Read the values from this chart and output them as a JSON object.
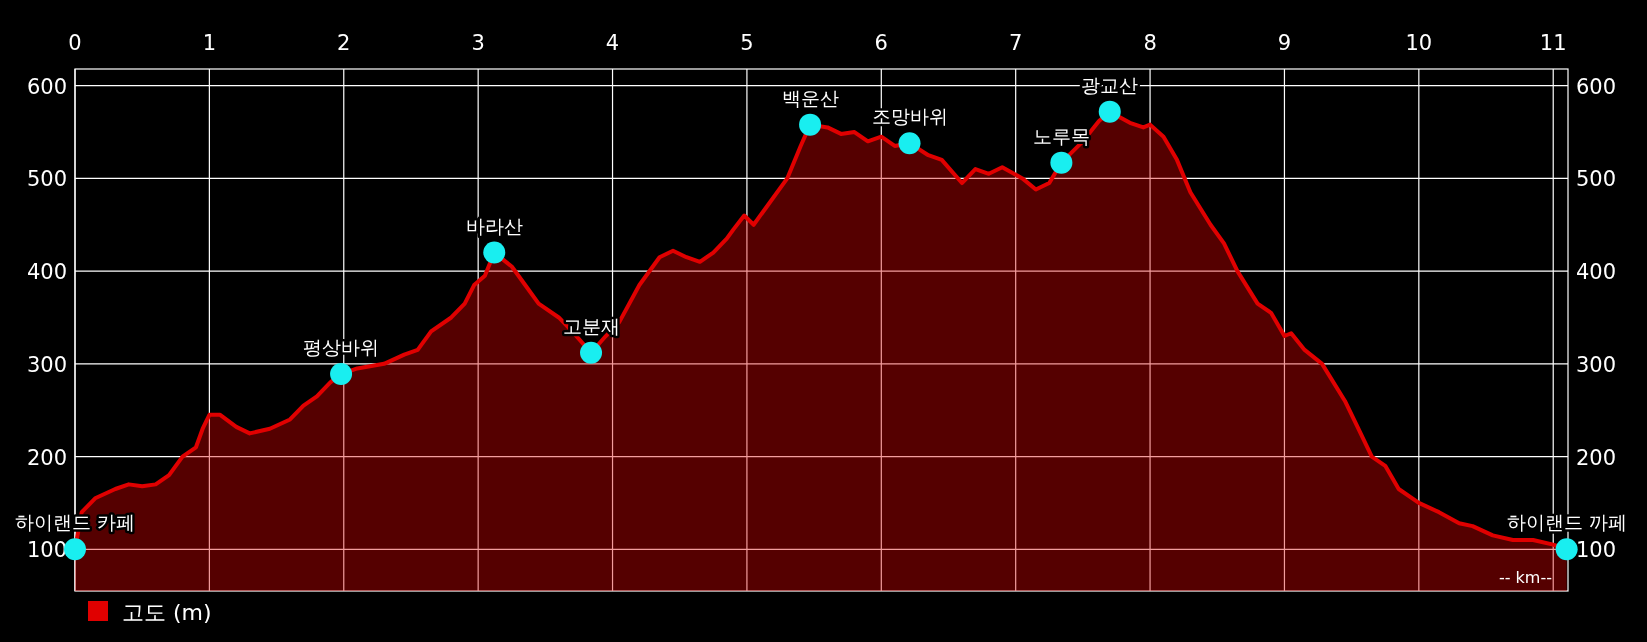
{
  "chart_data": {
    "type": "area",
    "xlabel": "-- km--",
    "xlim": [
      0,
      11.11
    ],
    "xticks": [
      0,
      1,
      2,
      3,
      4,
      5,
      6,
      7,
      8,
      9,
      10,
      11
    ],
    "ylim": [
      55,
      618
    ],
    "yticks": [
      100,
      200,
      300,
      400,
      500,
      600
    ],
    "y2lim": [
      55,
      618
    ],
    "y2ticks": [
      100,
      200,
      300,
      400,
      500,
      600
    ],
    "grid": true,
    "legend": "bottom left",
    "series": [
      {
        "name": "고도 (m)",
        "color": "#e00000",
        "marker": "none",
        "x": [
          0,
          0.05,
          0.15,
          0.3,
          0.4,
          0.5,
          0.6,
          0.7,
          0.8,
          0.9,
          0.95,
          1.0,
          1.08,
          1.2,
          1.3,
          1.45,
          1.6,
          1.7,
          1.8,
          1.9,
          1.98,
          2.1,
          2.3,
          2.45,
          2.55,
          2.65,
          2.8,
          2.9,
          2.97,
          3.05,
          3.12,
          3.25,
          3.35,
          3.45,
          3.6,
          3.7,
          3.84,
          3.95,
          4.05,
          4.2,
          4.35,
          4.45,
          4.55,
          4.65,
          4.75,
          4.85,
          4.9,
          4.98,
          5.05,
          5.15,
          5.3,
          5.4,
          5.47,
          5.6,
          5.7,
          5.8,
          5.9,
          6.0,
          6.1,
          6.21,
          6.35,
          6.45,
          6.6,
          6.7,
          6.8,
          6.9,
          7.05,
          7.15,
          7.25,
          7.34,
          7.5,
          7.62,
          7.7,
          7.85,
          7.95,
          8.0,
          8.1,
          8.2,
          8.3,
          8.45,
          8.55,
          8.65,
          8.8,
          8.9,
          9.0,
          9.05,
          9.15,
          9.28,
          9.45,
          9.55,
          9.65,
          9.75,
          9.85,
          10.0,
          10.15,
          10.3,
          10.4,
          10.55,
          10.7,
          10.85,
          11.0,
          11.1
        ],
        "values": [
          100,
          140,
          155,
          165,
          170,
          168,
          170,
          180,
          200,
          210,
          230,
          245,
          245,
          232,
          225,
          230,
          240,
          255,
          265,
          280,
          289,
          295,
          300,
          310,
          315,
          335,
          350,
          365,
          385,
          395,
          420,
          405,
          385,
          365,
          350,
          335,
          312,
          330,
          345,
          385,
          415,
          422,
          415,
          410,
          420,
          435,
          445,
          460,
          450,
          470,
          500,
          535,
          558,
          555,
          548,
          550,
          540,
          545,
          535,
          538,
          525,
          520,
          495,
          510,
          505,
          512,
          500,
          488,
          495,
          517,
          540,
          562,
          572,
          560,
          555,
          558,
          545,
          520,
          485,
          450,
          430,
          400,
          365,
          355,
          330,
          333,
          315,
          300,
          260,
          230,
          200,
          190,
          165,
          150,
          140,
          128,
          125,
          115,
          110,
          110,
          105,
          100
        ]
      },
      {
        "type": "scatter",
        "color": "#19eef0",
        "marker": "circle",
        "x": [
          0,
          1.98,
          3.12,
          3.84,
          5.47,
          6.21,
          7.34,
          7.7,
          11.1
        ],
        "values": [
          100,
          289,
          420,
          312,
          558,
          538,
          517,
          572,
          100
        ]
      }
    ],
    "annotations": [
      {
        "text": "하이랜드 카페",
        "x": 0,
        "y": 100
      },
      {
        "text": "평상바위",
        "x": 1.98,
        "y": 289
      },
      {
        "text": "바라산",
        "x": 3.12,
        "y": 420
      },
      {
        "text": "고분재",
        "x": 3.84,
        "y": 312
      },
      {
        "text": "백운산",
        "x": 5.47,
        "y": 558
      },
      {
        "text": "조망바위",
        "x": 6.21,
        "y": 538
      },
      {
        "text": "노루목",
        "x": 7.34,
        "y": 517
      },
      {
        "text": "광교산",
        "x": 7.7,
        "y": 572
      },
      {
        "text": "하이랜드 까페",
        "x": 11.1,
        "y": 100
      }
    ]
  }
}
